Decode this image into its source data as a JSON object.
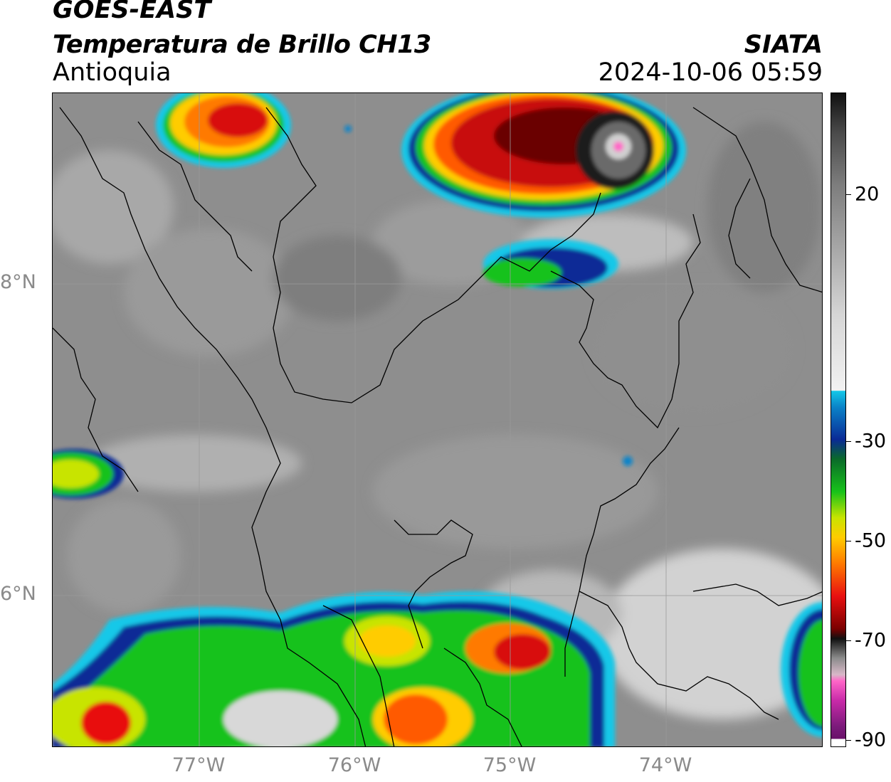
{
  "header": {
    "satellite": "GOES-EAST",
    "product": "Temperatura de Brillo CH13",
    "region": "Antioquia",
    "brand": "SIATA",
    "datetime": "2024-10-06 05:59"
  },
  "map": {
    "lat_labels": [
      "8°N",
      "6°N"
    ],
    "lon_labels": [
      "77°W",
      "76°W",
      "75°W",
      "74°W"
    ]
  },
  "colorbar": {
    "labels": [
      "20",
      "-30",
      "-50",
      "-70",
      "-90"
    ],
    "colors": {
      "warm_gray": "#8c8c8c",
      "cyan": "#14c8e8",
      "blue": "#0a2a96",
      "green": "#17c21a",
      "yellow": "#ffcc00",
      "orange": "#ff7a00",
      "red": "#e81010",
      "black": "#101010",
      "magenta": "#ff66c8",
      "purple": "#7a1a7a"
    }
  }
}
